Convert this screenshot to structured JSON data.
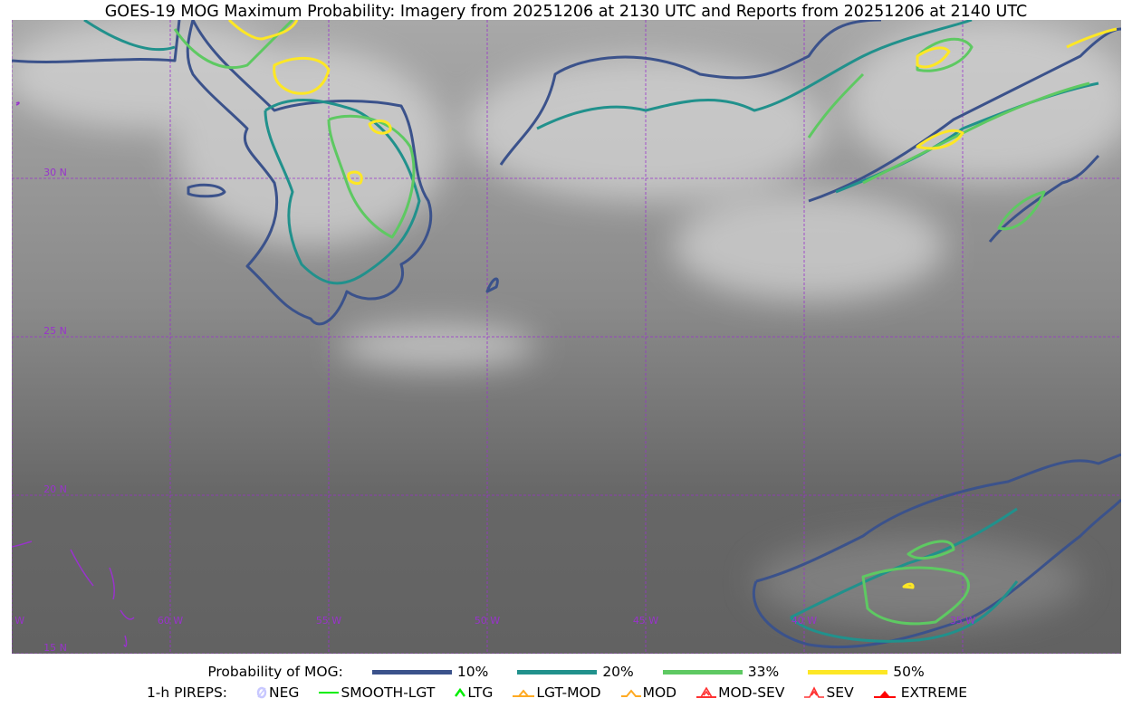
{
  "title": "GOES-19 MOG Maximum Probability: Imagery from 20251206 at 2130 UTC and Reports from 20251206 at 2140 UTC",
  "map": {
    "lon_labels": [
      "65 W",
      "60 W",
      "55 W",
      "50 W",
      "45 W",
      "40 W",
      "35 W"
    ],
    "lat_labels": [
      "30 N",
      "25 N",
      "20 N",
      "15 N"
    ],
    "extent": {
      "lon_min": -65,
      "lon_max": -30,
      "lat_min": 15,
      "lat_max": 35
    },
    "grid_color": "#9933cc",
    "label_color": "#9933cc"
  },
  "legend": {
    "probability_label": "Probability of MOG:",
    "levels": [
      {
        "label": "10%",
        "color": "#3b528b"
      },
      {
        "label": "20%",
        "color": "#21918c"
      },
      {
        "label": "33%",
        "color": "#5ec962"
      },
      {
        "label": "50%",
        "color": "#fde725"
      }
    ],
    "pireps_label": "1-h PIREPS:",
    "pireps": [
      {
        "label": "NEG",
        "icon": "neg-circle-icon",
        "color": "#c8c8ff"
      },
      {
        "label": "SMOOTH-LGT",
        "icon": "smooth-line-icon",
        "color": "#00ee00"
      },
      {
        "label": "LTG",
        "icon": "light-caret-icon",
        "color": "#00ee00"
      },
      {
        "label": "LGT-MOD",
        "icon": "light-moderate-icon",
        "color": "#ffaa22"
      },
      {
        "label": "MOD",
        "icon": "moderate-icon",
        "color": "#ffaa22"
      },
      {
        "label": "MOD-SEV",
        "icon": "moderate-severe-icon",
        "color": "#ff3333"
      },
      {
        "label": "SEV",
        "icon": "severe-icon",
        "color": "#ff3333"
      },
      {
        "label": "EXTREME",
        "icon": "extreme-icon",
        "color": "#ff0000"
      }
    ]
  }
}
